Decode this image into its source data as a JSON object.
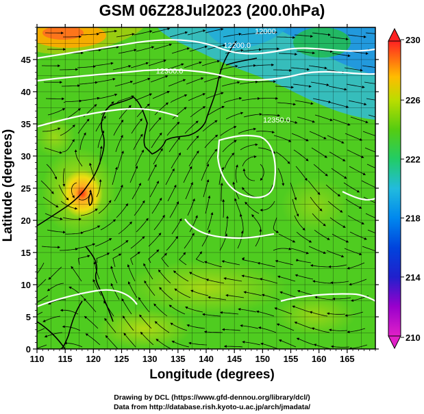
{
  "title": "GSM 06Z28Jul2023 (200.0hPa)",
  "x_axis": {
    "label": "Longitude (degrees)",
    "range": [
      110,
      170
    ],
    "ticks": [
      110,
      115,
      120,
      125,
      130,
      135,
      140,
      145,
      150,
      155,
      160,
      165
    ]
  },
  "y_axis": {
    "label": "Latitude  (degrees)",
    "range": [
      0,
      50
    ],
    "ticks": [
      0,
      5,
      10,
      15,
      20,
      25,
      30,
      35,
      40,
      45
    ]
  },
  "colorbar": {
    "range": [
      210,
      230
    ],
    "ticks": [
      210,
      214,
      218,
      222,
      226,
      230
    ]
  },
  "contours": [
    {
      "label": "12300.0",
      "lon": 133.5,
      "lat": 42.8
    },
    {
      "label": "12350.0",
      "lon": 152.5,
      "lat": 35.2
    },
    {
      "label": "12200.0",
      "lon": 145.5,
      "lat": 46.8
    },
    {
      "label": "12000",
      "lon": 150.5,
      "lat": 49.0
    }
  ],
  "credits": {
    "line1": "Drawing by DCL (https://www.gfd-dennou.org/library/dcl/)",
    "line2": "Data from http://database.rish.kyoto-u.ac.jp/arch/jmadata/"
  },
  "colors": {
    "warm_core": "#ff4422",
    "cold_band": "#33aaee",
    "background_field": "#22cc22"
  }
}
